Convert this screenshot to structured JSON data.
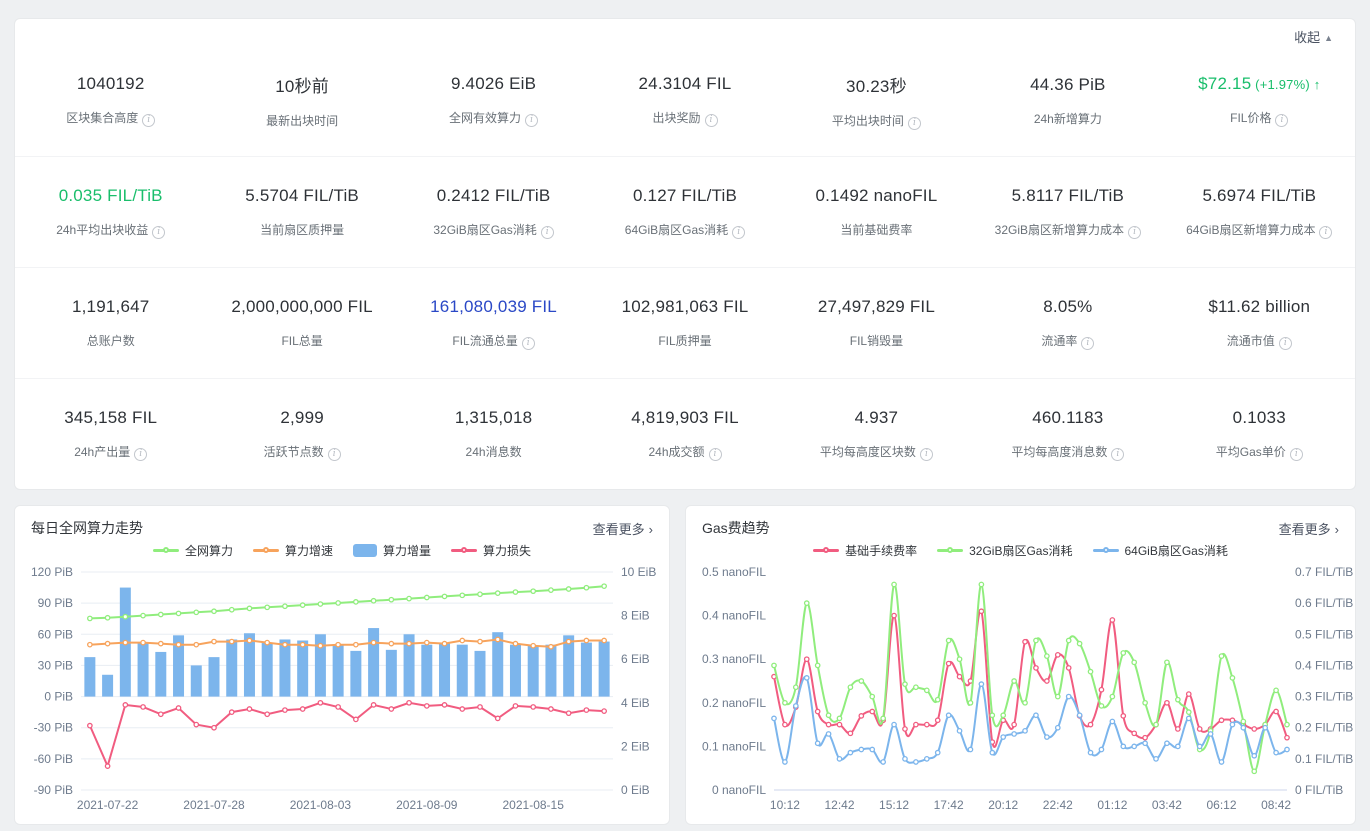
{
  "header_ui": {
    "collapse_label": "收起",
    "collapse_icon": "▲"
  },
  "charts_ui": {
    "more_label": "查看更多",
    "more_arrow": "›"
  },
  "colors": {
    "green_accent": "#19be6b",
    "blue_link": "#2a48c6",
    "bar_blue": "#7cb5ec",
    "line_green": "#90ed7d",
    "line_orange": "#f7a35c",
    "line_red": "#f15c80"
  },
  "stats": {
    "rows": [
      [
        {
          "value": "1040192",
          "label": "区块集合高度",
          "info": true
        },
        {
          "value": "10秒前",
          "label": "最新出块时间",
          "info": false
        },
        {
          "value": "9.4026 EiB",
          "label": "全网有效算力",
          "info": true
        },
        {
          "value": "24.3104 FIL",
          "label": "出块奖励",
          "info": true
        },
        {
          "value": "30.23秒",
          "label": "平均出块时间",
          "info": true
        },
        {
          "value": "44.36 PiB",
          "label": "24h新增算力",
          "info": false
        },
        {
          "value": "$72.15",
          "change": "(+1.97%)",
          "arrow": "↑",
          "label": "FIL价格",
          "info": true,
          "color": "green"
        }
      ],
      [
        {
          "value": "0.035 FIL/TiB",
          "label": "24h平均出块收益",
          "info": true,
          "color": "green"
        },
        {
          "value": "5.5704 FIL/TiB",
          "label": "当前扇区质押量",
          "info": false
        },
        {
          "value": "0.2412 FIL/TiB",
          "label": "32GiB扇区Gas消耗",
          "info": true
        },
        {
          "value": "0.127 FIL/TiB",
          "label": "64GiB扇区Gas消耗",
          "info": true
        },
        {
          "value": "0.1492 nanoFIL",
          "label": "当前基础费率",
          "info": false
        },
        {
          "value": "5.8117 FIL/TiB",
          "label": "32GiB扇区新增算力成本",
          "info": true
        },
        {
          "value": "5.6974 FIL/TiB",
          "label": "64GiB扇区新增算力成本",
          "info": true
        }
      ],
      [
        {
          "value": "1,191,647",
          "label": "总账户数",
          "info": false
        },
        {
          "value": "2,000,000,000 FIL",
          "label": "FIL总量",
          "info": false
        },
        {
          "value": "161,080,039 FIL",
          "label": "FIL流通总量",
          "info": true,
          "color": "blue"
        },
        {
          "value": "102,981,063 FIL",
          "label": "FIL质押量",
          "info": false
        },
        {
          "value": "27,497,829 FIL",
          "label": "FIL销毁量",
          "info": false
        },
        {
          "value": "8.05%",
          "label": "流通率",
          "info": true
        },
        {
          "value": "$11.62 billion",
          "label": "流通市值",
          "info": true
        }
      ],
      [
        {
          "value": "345,158 FIL",
          "label": "24h产出量",
          "info": true
        },
        {
          "value": "2,999",
          "label": "活跃节点数",
          "info": true
        },
        {
          "value": "1,315,018",
          "label": "24h消息数",
          "info": false
        },
        {
          "value": "4,819,903 FIL",
          "label": "24h成交额",
          "info": true
        },
        {
          "value": "4.937",
          "label": "平均每高度区块数",
          "info": true
        },
        {
          "value": "460.1183",
          "label": "平均每高度消息数",
          "info": true
        },
        {
          "value": "0.1033",
          "label": "平均Gas单价",
          "info": true
        }
      ]
    ]
  },
  "chart_data": [
    {
      "type": "bar",
      "title": "每日全网算力走势",
      "n_points": 30,
      "x_tick_labels": [
        "2021-07-22",
        "2021-07-28",
        "2021-08-03",
        "2021-08-09",
        "2021-08-15"
      ],
      "x_tick_indices": [
        1,
        7,
        13,
        19,
        25
      ],
      "y_left": {
        "unit": "PiB",
        "ticks": [
          120,
          90,
          60,
          30,
          0,
          -30,
          -60,
          -90
        ],
        "min": -90,
        "max": 120
      },
      "y_right": {
        "unit": "EiB",
        "ticks": [
          10,
          8,
          6,
          4,
          2,
          0
        ],
        "min": 0,
        "max": 10
      },
      "grid": true,
      "smooth": false,
      "legend_position": "top",
      "series": [
        {
          "name": "算力增量",
          "type": "bar",
          "axis": "left",
          "color": "#7cb5ec",
          "values": [
            38,
            21,
            105,
            52,
            43,
            59,
            30,
            38,
            55,
            61,
            52,
            55,
            54,
            60,
            50,
            44,
            66,
            45,
            60,
            50,
            52,
            50,
            44,
            62,
            50,
            49,
            50,
            59,
            52,
            53
          ]
        },
        {
          "name": "算力增速",
          "type": "line",
          "axis": "left",
          "color": "#f7a35c",
          "values": [
            50,
            51,
            52,
            52,
            51,
            50,
            50,
            53,
            53,
            54,
            52,
            50,
            50,
            49,
            50,
            50,
            52,
            51,
            51,
            52,
            51,
            54,
            53,
            55,
            51,
            49,
            48,
            53,
            54,
            54
          ]
        },
        {
          "name": "全网算力",
          "type": "line",
          "axis": "right",
          "color": "#90ed7d",
          "values": [
            7.87,
            7.9,
            7.95,
            8.0,
            8.05,
            8.1,
            8.15,
            8.2,
            8.27,
            8.33,
            8.38,
            8.43,
            8.48,
            8.53,
            8.58,
            8.63,
            8.68,
            8.73,
            8.78,
            8.83,
            8.88,
            8.93,
            8.98,
            9.03,
            9.08,
            9.12,
            9.17,
            9.22,
            9.28,
            9.35
          ]
        },
        {
          "name": "算力损失",
          "type": "line",
          "axis": "left",
          "color": "#f15c80",
          "values": [
            -28,
            -67,
            -8,
            -10,
            -17,
            -11,
            -27,
            -30,
            -15,
            -12,
            -17,
            -13,
            -12,
            -6,
            -10,
            -22,
            -8,
            -12,
            -6,
            -9,
            -8,
            -12,
            -10,
            -21,
            -9,
            -10,
            -12,
            -16,
            -13,
            -14
          ]
        }
      ],
      "legend_order": [
        "全网算力",
        "算力增速",
        "算力增量",
        "算力损失"
      ]
    },
    {
      "type": "line",
      "title": "Gas费趋势",
      "n_points": 48,
      "x_tick_labels": [
        "10:12",
        "12:42",
        "15:12",
        "17:42",
        "20:12",
        "22:42",
        "01:12",
        "03:42",
        "06:12",
        "08:42"
      ],
      "x_tick_indices": [
        1,
        6,
        11,
        16,
        21,
        26,
        31,
        36,
        41,
        46
      ],
      "y_left": {
        "unit": "nanoFIL",
        "ticks": [
          0.5,
          0.4,
          0.3,
          0.2,
          0.1,
          0
        ],
        "min": 0,
        "max": 0.5
      },
      "y_right": {
        "unit": "FIL/TiB",
        "ticks": [
          0.7,
          0.6,
          0.5,
          0.4,
          0.3,
          0.2,
          0.1,
          0
        ],
        "min": 0,
        "max": 0.7
      },
      "grid": false,
      "smooth": true,
      "legend_position": "top",
      "series": [
        {
          "name": "基础手续费率",
          "type": "line",
          "axis": "left",
          "color": "#f15c80",
          "values": [
            0.26,
            0.15,
            0.19,
            0.3,
            0.18,
            0.15,
            0.15,
            0.13,
            0.17,
            0.18,
            0.16,
            0.4,
            0.14,
            0.15,
            0.15,
            0.16,
            0.29,
            0.26,
            0.25,
            0.41,
            0.11,
            0.16,
            0.15,
            0.34,
            0.28,
            0.25,
            0.31,
            0.28,
            0.17,
            0.15,
            0.23,
            0.39,
            0.17,
            0.13,
            0.12,
            0.15,
            0.2,
            0.14,
            0.22,
            0.14,
            0.14,
            0.16,
            0.16,
            0.15,
            0.14,
            0.15,
            0.18,
            0.12
          ]
        },
        {
          "name": "32GiB扇区Gas消耗",
          "type": "line",
          "axis": "right",
          "color": "#90ed7d",
          "values": [
            0.4,
            0.28,
            0.33,
            0.6,
            0.4,
            0.24,
            0.23,
            0.33,
            0.35,
            0.3,
            0.23,
            0.66,
            0.34,
            0.33,
            0.32,
            0.29,
            0.48,
            0.42,
            0.28,
            0.66,
            0.24,
            0.24,
            0.35,
            0.28,
            0.48,
            0.43,
            0.3,
            0.48,
            0.47,
            0.38,
            0.27,
            0.3,
            0.44,
            0.41,
            0.28,
            0.21,
            0.41,
            0.29,
            0.25,
            0.13,
            0.19,
            0.43,
            0.36,
            0.22,
            0.06,
            0.21,
            0.32,
            0.21
          ]
        },
        {
          "name": "64GiB扇区Gas消耗",
          "type": "line",
          "axis": "right",
          "color": "#7cb5ec",
          "values": [
            0.23,
            0.09,
            0.27,
            0.36,
            0.15,
            0.18,
            0.1,
            0.12,
            0.13,
            0.13,
            0.09,
            0.21,
            0.1,
            0.09,
            0.1,
            0.12,
            0.24,
            0.19,
            0.13,
            0.34,
            0.12,
            0.17,
            0.18,
            0.19,
            0.24,
            0.17,
            0.2,
            0.3,
            0.24,
            0.12,
            0.13,
            0.22,
            0.14,
            0.14,
            0.15,
            0.1,
            0.15,
            0.14,
            0.23,
            0.14,
            0.18,
            0.09,
            0.21,
            0.2,
            0.11,
            0.2,
            0.12,
            0.13
          ]
        }
      ],
      "legend_order": [
        "基础手续费率",
        "32GiB扇区Gas消耗",
        "64GiB扇区Gas消耗"
      ]
    }
  ]
}
